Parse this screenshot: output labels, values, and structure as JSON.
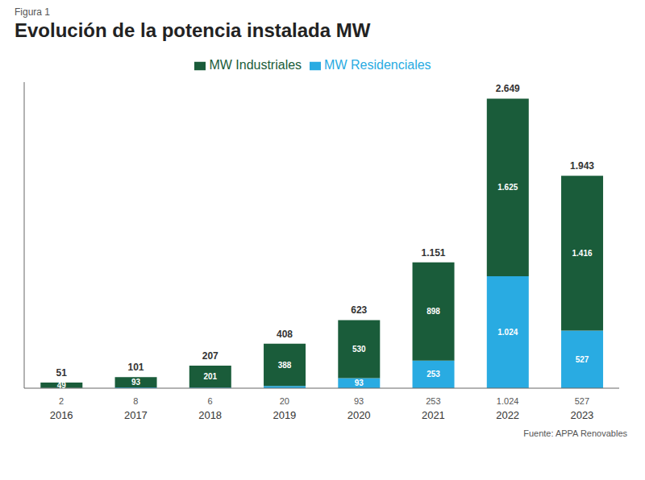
{
  "chart_data": {
    "type": "bar",
    "subtitle": "Figura 1",
    "title": "Evolución de la potencia instalada MW",
    "source": "Fuente: APPA Renovables",
    "categories": [
      "2016",
      "2017",
      "2018",
      "2019",
      "2020",
      "2021",
      "2022",
      "2023"
    ],
    "category_sublabels": [
      "2",
      "8",
      "6",
      "20",
      "93",
      "253",
      "1.024",
      "527"
    ],
    "series": [
      {
        "name": "MW Residenciales",
        "color": "#29abe2",
        "values": [
          2,
          8,
          6,
          20,
          93,
          253,
          1024,
          527
        ],
        "value_labels": [
          null,
          null,
          null,
          null,
          "93",
          "253",
          "1.024",
          "527"
        ]
      },
      {
        "name": "MW Industriales",
        "color": "#1a5c3a",
        "values": [
          49,
          93,
          201,
          388,
          530,
          898,
          1625,
          1416
        ],
        "value_labels": [
          "49",
          "93",
          "201",
          "388",
          "530",
          "898",
          "1.625",
          "1.416"
        ]
      }
    ],
    "totals": [
      51,
      101,
      207,
      408,
      623,
      1151,
      2649,
      1943
    ],
    "total_labels": [
      "51",
      "101",
      "207",
      "408",
      "623",
      "1.151",
      "2.649",
      "1.943"
    ],
    "stacked": true,
    "data_labels": true,
    "tick_labels": "x",
    "ylim": [
      0,
      2800
    ]
  }
}
